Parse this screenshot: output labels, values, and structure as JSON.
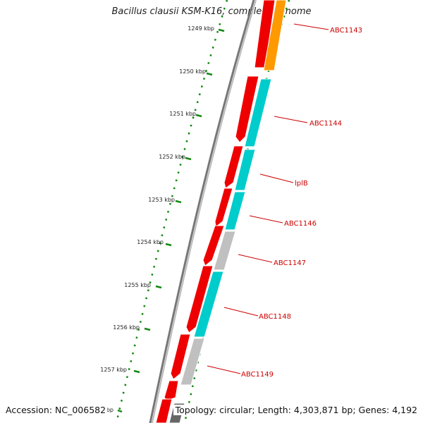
{
  "title": "Bacillus clausii KSM-K16, complete genome",
  "footer": {
    "accession": "Accession: NC_006582",
    "stats": "Topology: circular; Length: 4,303,871 bp; Genes: 4,192"
  },
  "ticks": [
    "1249 kbp",
    "1250 kbp",
    "1251 kbp",
    "1252 kbp",
    "1253 kbp",
    "1254 kbp",
    "1255 kbp",
    "1256 kbp",
    "1257 kbp"
  ],
  "partial_tick": "kbp",
  "gene_labels": [
    "ABC1143",
    "ABC1144",
    "lplB",
    "ABC1146",
    "ABC1147",
    "ABC1148",
    "ABC1149"
  ],
  "colors": {
    "forward_cds": "#ee0000",
    "category_orange": "#ff9900",
    "category_cyan": "#00cccc",
    "category_grey": "#c0c0c0",
    "category_dark": "#666666",
    "backbone": "#888888",
    "ruler": "#118811",
    "label": "#cc0000"
  }
}
